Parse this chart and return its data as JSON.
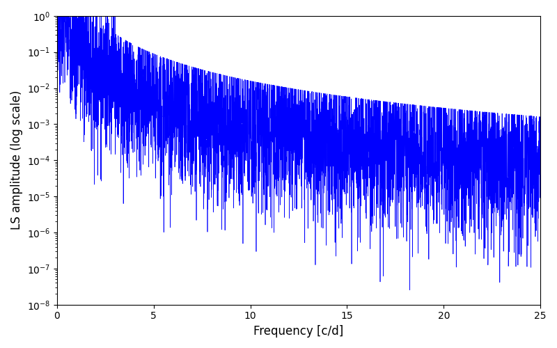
{
  "xlabel": "Frequency [c/d]",
  "ylabel": "LS amplitude (log scale)",
  "xlim": [
    0,
    25
  ],
  "ylim": [
    1e-08,
    1.0
  ],
  "line_color": "#0000ff",
  "line_width": 0.5,
  "freq_min": 0.01,
  "freq_max": 25.0,
  "n_points": 5000,
  "seed": 7,
  "background_color": "#ffffff",
  "figsize": [
    8.0,
    5.0
  ],
  "dpi": 100
}
